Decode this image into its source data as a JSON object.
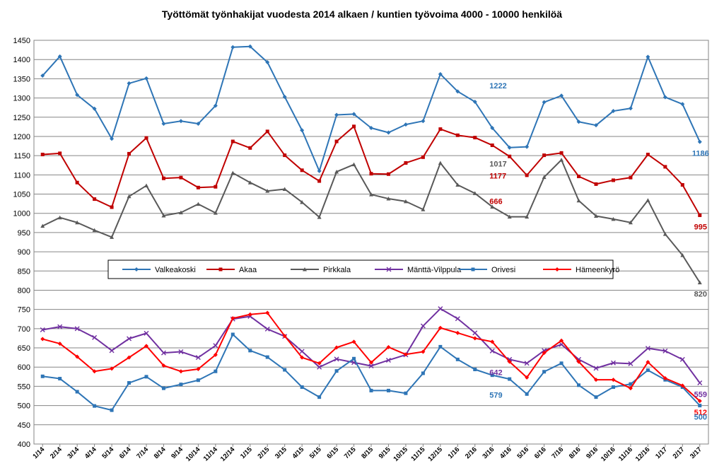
{
  "chart_data": {
    "type": "line",
    "title": "Työttömät työnhakijat vuodesta 2014 alkaen / kuntien työvoima 4000 - 10000 henkilöä",
    "xlabel": "",
    "ylabel": "",
    "ylim": [
      400,
      1450
    ],
    "ystep": 50,
    "grid": true,
    "legend_position": "center",
    "categories": [
      "1/14",
      "2/14",
      "3/14",
      "4/14",
      "5/14",
      "6/14",
      "7/14",
      "8/14",
      "9/14",
      "10/14",
      "11/14",
      "12/14",
      "1/15",
      "2/15",
      "3/15",
      "4/15",
      "5/15",
      "6/15",
      "7/15",
      "8/15",
      "9/15",
      "10/15",
      "11/15",
      "12/15",
      "1/16",
      "2/16",
      "3/16",
      "4/16",
      "5/16",
      "6/16",
      "7/16",
      "8/16",
      "9/16",
      "10/16",
      "11/16",
      "12/16",
      "1/17",
      "2/17",
      "3/17"
    ],
    "series": [
      {
        "name": "Valkeakoski",
        "color": "#2e75b6",
        "marker": "diamond",
        "values": [
          1358,
          1408,
          1308,
          1272,
          1194,
          1338,
          1351,
          1233,
          1240,
          1233,
          1280,
          1432,
          1434,
          1393,
          1303,
          1216,
          1110,
          1256,
          1258,
          1222,
          1210,
          1231,
          1240,
          1362,
          1317,
          1290,
          1222,
          1171,
          1173,
          1289,
          1306,
          1238,
          1229,
          1266,
          1273,
          1407,
          1302,
          1284,
          1186
        ]
      },
      {
        "name": "Akaa",
        "color": "#c00000",
        "marker": "square",
        "values": [
          1153,
          1156,
          1080,
          1037,
          1016,
          1155,
          1196,
          1091,
          1093,
          1067,
          1069,
          1187,
          1170,
          1213,
          1151,
          1112,
          1084,
          1187,
          1226,
          1103,
          1102,
          1131,
          1146,
          1219,
          1203,
          1197,
          1177,
          1148,
          1099,
          1151,
          1157,
          1096,
          1076,
          1086,
          1093,
          1153,
          1121,
          1074,
          995
        ]
      },
      {
        "name": "Pirkkala",
        "color": "#595959",
        "marker": "triangle",
        "values": [
          967,
          989,
          976,
          956,
          938,
          1044,
          1072,
          994,
          1002,
          1024,
          1001,
          1105,
          1080,
          1058,
          1063,
          1029,
          990,
          1108,
          1127,
          1049,
          1038,
          1031,
          1010,
          1131,
          1074,
          1052,
          1017,
          991,
          991,
          1094,
          1139,
          1033,
          993,
          985,
          976,
          1034,
          946,
          891,
          820
        ]
      },
      {
        "name": "Mänttä-Vilppula",
        "color": "#7030a0",
        "marker": "x",
        "values": [
          697,
          705,
          700,
          677,
          643,
          674,
          688,
          637,
          640,
          625,
          656,
          725,
          732,
          699,
          680,
          641,
          600,
          621,
          612,
          603,
          618,
          632,
          707,
          752,
          726,
          689,
          642,
          620,
          610,
          643,
          659,
          620,
          597,
          611,
          609,
          649,
          642,
          620,
          559
        ]
      },
      {
        "name": "Orivesi",
        "color": "#2e75b6",
        "marker": "square",
        "values": [
          576,
          570,
          536,
          499,
          488,
          559,
          575,
          545,
          555,
          566,
          589,
          685,
          643,
          626,
          593,
          548,
          522,
          590,
          622,
          539,
          539,
          532,
          584,
          653,
          620,
          594,
          579,
          569,
          530,
          588,
          610,
          553,
          522,
          548,
          556,
          592,
          567,
          548,
          500
        ]
      },
      {
        "name": "Hämeenkyrö",
        "color": "#ff0000",
        "marker": "diamond",
        "values": [
          673,
          661,
          627,
          589,
          596,
          625,
          655,
          604,
          589,
          595,
          632,
          727,
          737,
          741,
          681,
          625,
          610,
          651,
          666,
          612,
          652,
          633,
          640,
          702,
          689,
          675,
          666,
          614,
          573,
          637,
          669,
          614,
          567,
          567,
          545,
          613,
          571,
          552,
          512
        ]
      }
    ],
    "annotations": [
      {
        "text": "1222",
        "color": "#2e75b6",
        "cat": 26,
        "value": 1222
      },
      {
        "text": "1186",
        "color": "#2e75b6",
        "cat": 38,
        "value": 1186
      },
      {
        "text": "1177",
        "color": "#c00000",
        "cat": 26,
        "value": 1177
      },
      {
        "text": "995",
        "color": "#c00000",
        "cat": 38,
        "value": 995
      },
      {
        "text": "1017",
        "color": "#595959",
        "cat": 26,
        "value": 1017
      },
      {
        "text": "820",
        "color": "#595959",
        "cat": 38,
        "value": 820
      },
      {
        "text": "666",
        "color": "#c00000",
        "cat": 26,
        "value": 666
      },
      {
        "text": "642",
        "color": "#7030a0",
        "cat": 26,
        "value": 642
      },
      {
        "text": "579",
        "color": "#2e75b6",
        "cat": 26,
        "value": 579
      },
      {
        "text": "559",
        "color": "#7030a0",
        "cat": 38,
        "value": 559
      },
      {
        "text": "512",
        "color": "#ff0000",
        "cat": 38,
        "value": 512
      },
      {
        "text": "500",
        "color": "#2e75b6",
        "cat": 38,
        "value": 500
      }
    ]
  }
}
